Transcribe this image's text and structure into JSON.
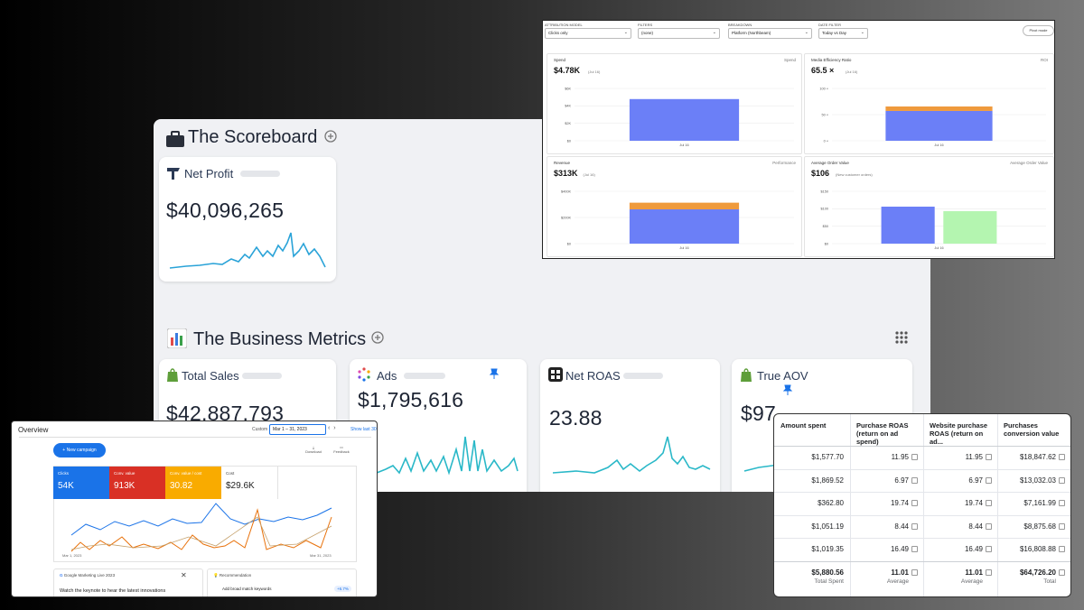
{
  "scoreboard": {
    "title": "The Scoreboard",
    "net_profit": {
      "label": "Net Profit",
      "value": "$40,096,265"
    }
  },
  "business_metrics": {
    "title": "The Business Metrics",
    "cards": [
      {
        "label": "Total Sales",
        "value": "$42,887,793"
      },
      {
        "label": "Ads",
        "value": "$1,795,616"
      },
      {
        "label": "Net ROAS",
        "value": "23.88"
      },
      {
        "label": "True AOV",
        "value": "$97"
      }
    ]
  },
  "northbeam": {
    "filters": [
      {
        "label": "ATTRIBUTION MODEL",
        "value": "Clicks only"
      },
      {
        "label": "FILTERS",
        "value": "(none)"
      },
      {
        "label": "BREAKDOWN",
        "value": "Platform (Northbeam)"
      },
      {
        "label": "DATE FILTER",
        "value": "Today vs Day"
      }
    ],
    "button": "Pivot mode",
    "charts": [
      {
        "title": "Spend",
        "value": "$4.78K",
        "note": "(Jul 16)",
        "tag": "Spend",
        "x_label": "Jul 16",
        "ylim": [
          0,
          6000
        ],
        "yticks": [
          {
            "value": 0,
            "label": "$0"
          },
          {
            "value": 2000,
            "label": "$2K"
          },
          {
            "value": 4000,
            "label": "$4K"
          },
          {
            "value": 6000,
            "label": "$6K"
          }
        ],
        "bars": [
          [
            {
              "color": "#6b7ff7",
              "value": 4780
            }
          ]
        ]
      },
      {
        "title": "Media Efficiency Ratio",
        "value": "65.5 ×",
        "note": "(Jul 16)",
        "tag": "ROI",
        "x_label": "Jul 16",
        "ylim": [
          0,
          100
        ],
        "yticks": [
          {
            "value": 0,
            "label": "0 ×"
          },
          {
            "value": 50,
            "label": "50 ×"
          },
          {
            "value": 100,
            "label": "100 ×"
          }
        ],
        "bars": [
          [
            {
              "color": "#6b7ff7",
              "value": 57
            },
            {
              "color": "#ef9a3c",
              "value": 8.5
            }
          ]
        ]
      },
      {
        "title": "Revenue",
        "value": "$313K",
        "note": "(Jul 16)",
        "tag": "Performance",
        "x_label": "Jul 16",
        "ylim": [
          0,
          400000
        ],
        "yticks": [
          {
            "value": 0,
            "label": "$0"
          },
          {
            "value": 200000,
            "label": "$200K"
          },
          {
            "value": 400000,
            "label": "$400K"
          }
        ],
        "bars": [
          [
            {
              "color": "#6b7ff7",
              "value": 262000
            },
            {
              "color": "#ef9a3c",
              "value": 51000
            }
          ]
        ]
      },
      {
        "title": "Average Order Value",
        "value": "$106",
        "note": "(New customer orders)",
        "tag": "Average Order Value",
        "x_label": "Jul 16",
        "ylim": [
          0,
          150
        ],
        "yticks": [
          {
            "value": 0,
            "label": "$0"
          },
          {
            "value": 50,
            "label": "$50"
          },
          {
            "value": 100,
            "label": "$100"
          },
          {
            "value": 150,
            "label": "$150"
          }
        ],
        "bars": [
          [
            {
              "color": "#6b7ff7",
              "value": 106
            }
          ],
          [
            {
              "color": "#b4f5b0",
              "value": 93
            }
          ]
        ]
      }
    ]
  },
  "google_ads": {
    "title": "Overview",
    "range_label": "Custom",
    "range": "Mar 1 – 31, 2023",
    "show_last": "Show last 30",
    "new_campaign": "New campaign",
    "download": "Download",
    "feedback": "Feedback",
    "tiles": [
      {
        "label": "Clicks",
        "value": "54K",
        "color": "#1a73e8"
      },
      {
        "label": "Conv. value",
        "value": "913K",
        "color": "#d93025"
      },
      {
        "label": "Conv. value / cost",
        "value": "30.82",
        "color": "#f9ab00"
      },
      {
        "label": "Cost",
        "value": "$29.6K",
        "color": "#ffffff"
      }
    ],
    "x_start": "Mar 1, 2023",
    "x_end": "Mar 31, 2023",
    "cards": [
      {
        "title": "Google Marketing Live 2023",
        "body": "Watch the keynote to hear the latest innovations"
      },
      {
        "title": "Recommendation",
        "body": "Add broad match keywords",
        "badge": "+6.7%"
      }
    ]
  },
  "table": {
    "headers": [
      "Amount spent",
      "Purchase ROAS (return on ad spend)",
      "Website purchase ROAS (return on ad...",
      "Purchases conversion value"
    ],
    "rows": [
      [
        "$1,577.70",
        "11.95",
        "11.95",
        "$18,847.62"
      ],
      [
        "$1,869.52",
        "6.97",
        "6.97",
        "$13,032.03"
      ],
      [
        "$362.80",
        "19.74",
        "19.74",
        "$7,161.99"
      ],
      [
        "$1,051.19",
        "8.44",
        "8.44",
        "$8,875.68"
      ],
      [
        "$1,019.35",
        "16.49",
        "16.49",
        "$16,808.88"
      ]
    ],
    "totals": [
      {
        "value": "$5,880.56",
        "label": "Total Spent"
      },
      {
        "value": "11.01",
        "label": "Average"
      },
      {
        "value": "11.01",
        "label": "Average"
      },
      {
        "value": "$64,726.20",
        "label": "Total"
      }
    ]
  }
}
